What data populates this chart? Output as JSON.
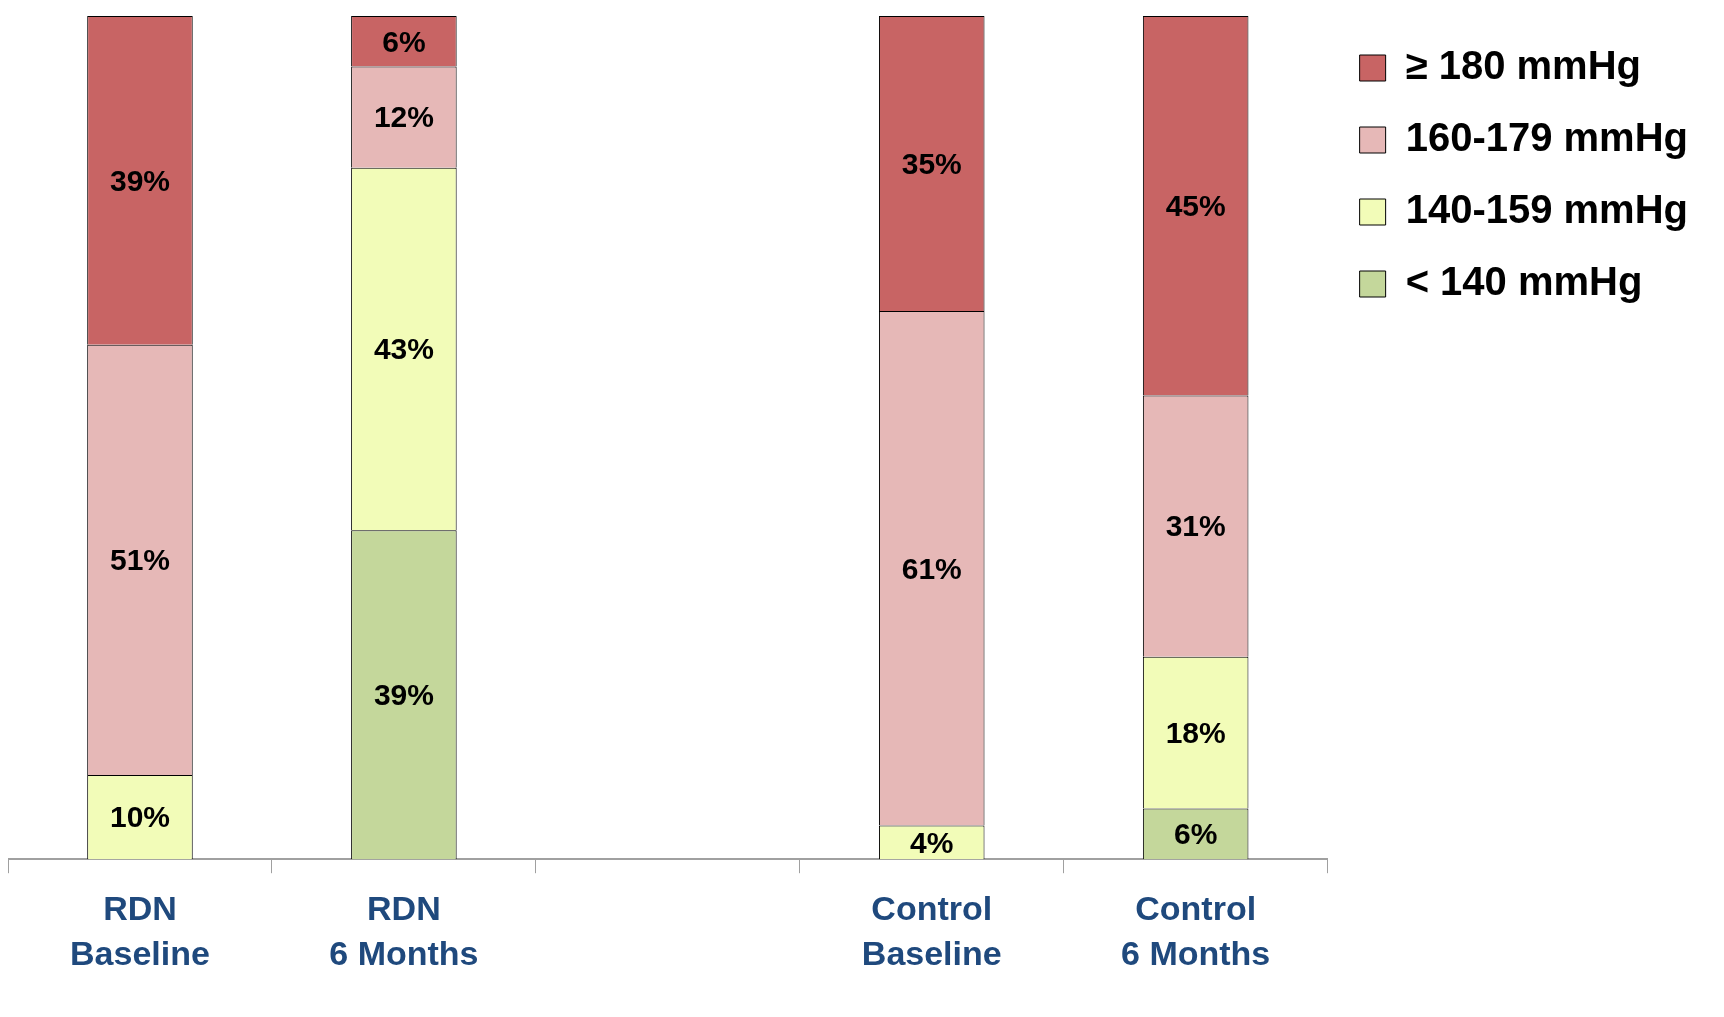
{
  "chart_data": {
    "type": "bar",
    "stacked": true,
    "categories": [
      "RDN\nBaseline",
      "RDN\n6 Months",
      null,
      "Control\nBaseline",
      "Control\n6 Months"
    ],
    "ylim": [
      0,
      100
    ],
    "tick_labels": "x",
    "legend": "top right",
    "grid": false,
    "series": [
      {
        "name": "< 140 mmHg",
        "color": "#c4d79b",
        "values": [
          null,
          39,
          null,
          null,
          6
        ],
        "value_labels": [
          null,
          "39%",
          null,
          null,
          "6%"
        ]
      },
      {
        "name": "140-159 mmHg",
        "color": "#f2fcb8",
        "values": [
          10,
          43,
          null,
          4,
          18
        ],
        "value_labels": [
          "10%",
          "43%",
          null,
          "4%",
          "18%"
        ]
      },
      {
        "name": "160-179 mmHg",
        "color": "#e6b8b7",
        "values": [
          51,
          12,
          null,
          61,
          31
        ],
        "value_labels": [
          "51%",
          "12%",
          null,
          "61%",
          "31%"
        ]
      },
      {
        "name": "≥ 180 mmHg",
        "color": "#c86464",
        "values": [
          39,
          6,
          null,
          35,
          45
        ],
        "value_labels": [
          "39%",
          "6%",
          null,
          "35%",
          "45%"
        ]
      }
    ]
  }
}
